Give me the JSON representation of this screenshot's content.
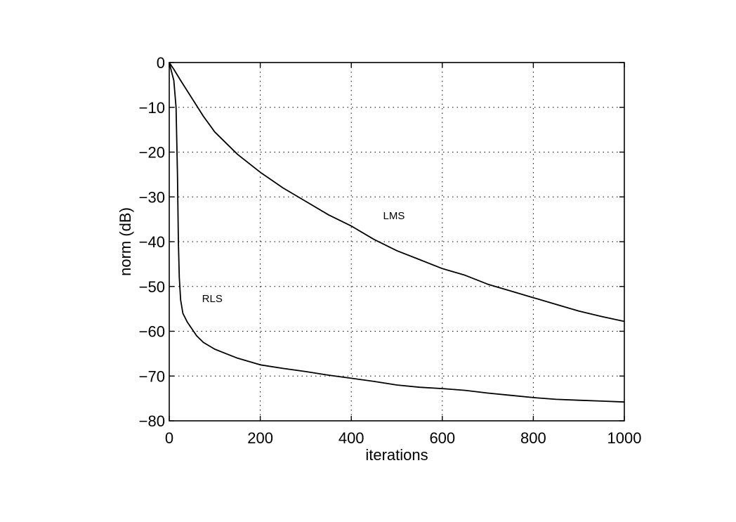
{
  "chart_data": {
    "type": "line",
    "title": "",
    "xlabel": "iterations",
    "ylabel": "norm (dB)",
    "xlim": [
      0,
      1000
    ],
    "ylim": [
      -80,
      0
    ],
    "grid": true,
    "grid_style": "dotted",
    "x_ticks": [
      0,
      200,
      400,
      600,
      800,
      1000
    ],
    "y_ticks": [
      0,
      -10,
      -20,
      -30,
      -40,
      -50,
      -60,
      -70,
      -80
    ],
    "x_tick_labels": [
      "0",
      "200",
      "400",
      "600",
      "800",
      "1000"
    ],
    "y_tick_labels": [
      "0",
      "−10",
      "−20",
      "−30",
      "−40",
      "−50",
      "−60",
      "−70",
      "−80"
    ],
    "line_color": "#000000",
    "series": [
      {
        "name": "LMS",
        "label": "LMS",
        "label_at": [
          470,
          -35
        ],
        "x": [
          0,
          10,
          25,
          50,
          75,
          100,
          150,
          200,
          250,
          300,
          350,
          400,
          450,
          500,
          550,
          600,
          650,
          700,
          750,
          800,
          850,
          900,
          950,
          1000
        ],
        "y": [
          0,
          -1.5,
          -4,
          -8,
          -12,
          -15.5,
          -20.5,
          -24.5,
          -28,
          -31,
          -34,
          -36.5,
          -39.5,
          -42,
          -44,
          -46,
          -47.5,
          -49.5,
          -51,
          -52.5,
          -54,
          -55.5,
          -56.7,
          -57.8
        ]
      },
      {
        "name": "RLS",
        "label": "RLS",
        "label_at": [
          72,
          -53.5
        ],
        "x": [
          0,
          5,
          10,
          15,
          18,
          20,
          22,
          25,
          30,
          40,
          50,
          60,
          75,
          100,
          125,
          150,
          200,
          250,
          300,
          350,
          400,
          450,
          500,
          550,
          600,
          650,
          700,
          750,
          800,
          850,
          900,
          950,
          1000
        ],
        "y": [
          0,
          -2,
          -4,
          -10,
          -25,
          -40,
          -48,
          -53,
          -56,
          -58,
          -59.5,
          -61,
          -62.5,
          -64,
          -65,
          -66,
          -67.5,
          -68.3,
          -69,
          -69.8,
          -70.5,
          -71.2,
          -72,
          -72.5,
          -72.8,
          -73.2,
          -73.8,
          -74.3,
          -74.8,
          -75.2,
          -75.4,
          -75.6,
          -75.8
        ]
      }
    ]
  }
}
